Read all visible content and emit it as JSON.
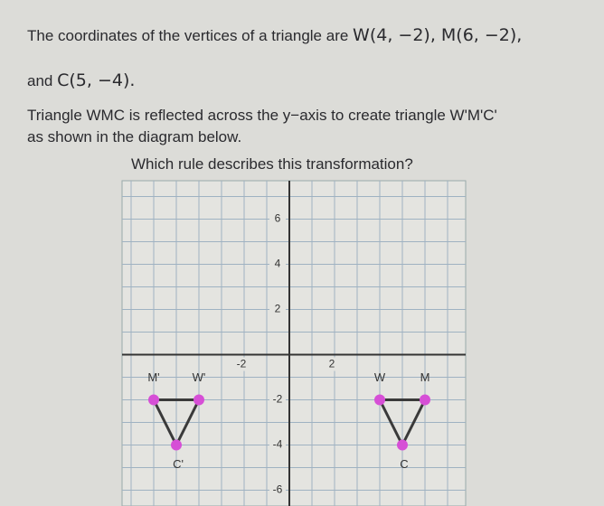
{
  "question": {
    "line1": "The coordinates of the vertices of a triangle are",
    "coords1": "W(4, −2), M(6, −2),",
    "line2": "and",
    "coords2": "C(5, −4).",
    "line3": "Triangle WMC is reflected across the y−axis to create triangle W'M'C'",
    "line4": "as shown in the diagram below.",
    "prompt": "Which rule describes this transformation?"
  },
  "diagram": {
    "xlim": [
      -7.4,
      7.8
    ],
    "ylim": [
      -6.7,
      7.7
    ],
    "xticks": [
      -2,
      2
    ],
    "yticks": [
      6,
      4,
      2,
      -2,
      -4,
      -6
    ],
    "points": [
      {
        "label": "W",
        "x": 4,
        "y": -2
      },
      {
        "label": "M",
        "x": 6,
        "y": -2
      },
      {
        "label": "C",
        "x": 5,
        "y": -4
      },
      {
        "label": "W'",
        "x": -4,
        "y": -2
      },
      {
        "label": "M'",
        "x": -6,
        "y": -2
      },
      {
        "label": "C'",
        "x": -5,
        "y": -4
      }
    ]
  }
}
